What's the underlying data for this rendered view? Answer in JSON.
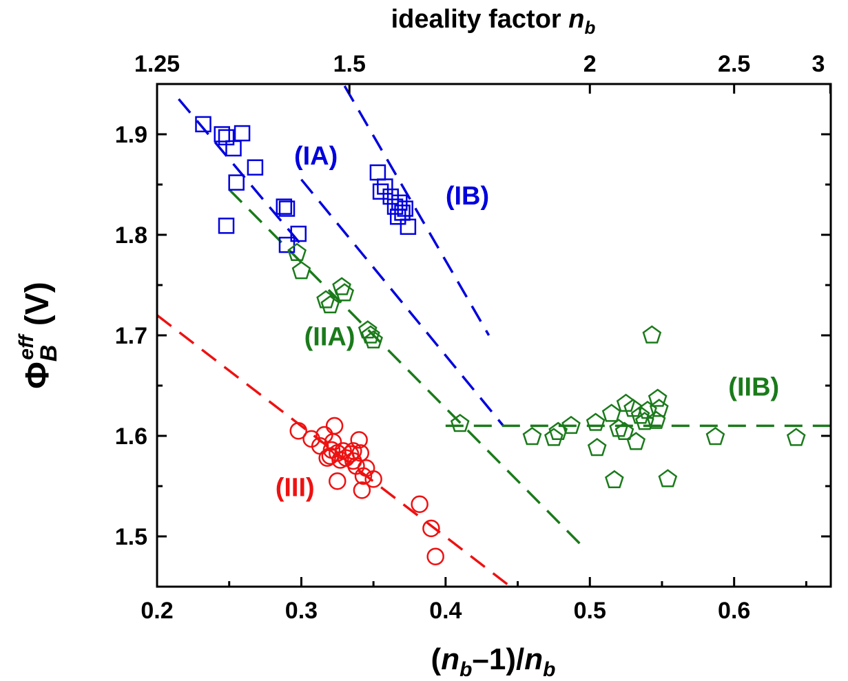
{
  "chart_data": {
    "type": "scatter",
    "title": "",
    "xlabel": {
      "open": "(",
      "var": "n",
      "sub": "b",
      "mid": "–1)/",
      "var2": "n",
      "sub2": "b"
    },
    "ylabel": {
      "sym": "Φ",
      "sub": "B",
      "sup": "eff",
      "unit": " (V)"
    },
    "top_axis": {
      "label_main": "ideality factor ",
      "label_var": "n",
      "label_sub": "b",
      "ticks": [
        {
          "label": "1.25",
          "n": 1.25
        },
        {
          "label": "1.5",
          "n": 1.5
        },
        {
          "label": "2",
          "n": 2.0
        },
        {
          "label": "2.5",
          "n": 2.5
        },
        {
          "label": "3",
          "n": 3.0
        }
      ]
    },
    "xlim": [
      0.2,
      0.667
    ],
    "ylim": [
      1.45,
      1.95
    ],
    "xticks": [
      {
        "v": 0.2,
        "label": "0.2"
      },
      {
        "v": 0.3,
        "label": "0.3"
      },
      {
        "v": 0.4,
        "label": "0.4"
      },
      {
        "v": 0.5,
        "label": "0.5"
      },
      {
        "v": 0.6,
        "label": "0.6"
      }
    ],
    "yticks": [
      {
        "v": 1.5,
        "label": "1.5"
      },
      {
        "v": 1.6,
        "label": "1.6"
      },
      {
        "v": 1.7,
        "label": "1.7"
      },
      {
        "v": 1.8,
        "label": "1.8"
      },
      {
        "v": 1.9,
        "label": "1.9"
      }
    ],
    "grid": false,
    "colors": {
      "blue": "#0000dd",
      "green": "#1a7a1a",
      "red": "#ee1111"
    },
    "series": [
      {
        "marker": "square",
        "color": "blue",
        "points": [
          [
            0.232,
            1.91
          ],
          [
            0.245,
            1.9
          ],
          [
            0.248,
            1.897
          ],
          [
            0.259,
            1.901
          ],
          [
            0.253,
            1.886
          ],
          [
            0.268,
            1.867
          ],
          [
            0.255,
            1.852
          ],
          [
            0.248,
            1.809
          ],
          [
            0.288,
            1.828
          ],
          [
            0.29,
            1.826
          ],
          [
            0.298,
            1.801
          ],
          [
            0.29,
            1.79
          ],
          [
            0.353,
            1.862
          ],
          [
            0.355,
            1.843
          ],
          [
            0.358,
            1.848
          ],
          [
            0.362,
            1.838
          ],
          [
            0.365,
            1.828
          ],
          [
            0.368,
            1.832
          ],
          [
            0.372,
            1.826
          ],
          [
            0.367,
            1.818
          ],
          [
            0.37,
            1.822
          ],
          [
            0.374,
            1.808
          ]
        ]
      },
      {
        "marker": "pentagon",
        "color": "green",
        "points": [
          [
            0.297,
            1.782
          ],
          [
            0.3,
            1.764
          ],
          [
            0.317,
            1.735
          ],
          [
            0.32,
            1.73
          ],
          [
            0.328,
            1.748
          ],
          [
            0.33,
            1.742
          ],
          [
            0.346,
            1.705
          ],
          [
            0.348,
            1.7
          ],
          [
            0.35,
            1.695
          ],
          [
            0.41,
            1.612
          ],
          [
            0.46,
            1.599
          ],
          [
            0.475,
            1.598
          ],
          [
            0.478,
            1.604
          ],
          [
            0.487,
            1.61
          ],
          [
            0.504,
            1.613
          ],
          [
            0.505,
            1.588
          ],
          [
            0.515,
            1.622
          ],
          [
            0.517,
            1.556
          ],
          [
            0.52,
            1.607
          ],
          [
            0.524,
            1.604
          ],
          [
            0.525,
            1.632
          ],
          [
            0.53,
            1.627
          ],
          [
            0.532,
            1.594
          ],
          [
            0.535,
            1.62
          ],
          [
            0.538,
            1.614
          ],
          [
            0.54,
            1.625
          ],
          [
            0.543,
            1.7
          ],
          [
            0.546,
            1.615
          ],
          [
            0.547,
            1.637
          ],
          [
            0.548,
            1.627
          ],
          [
            0.554,
            1.557
          ],
          [
            0.587,
            1.599
          ],
          [
            0.643,
            1.598
          ]
        ]
      },
      {
        "marker": "circle",
        "color": "red",
        "points": [
          [
            0.298,
            1.605
          ],
          [
            0.307,
            1.597
          ],
          [
            0.313,
            1.59
          ],
          [
            0.316,
            1.601
          ],
          [
            0.318,
            1.578
          ],
          [
            0.321,
            1.586
          ],
          [
            0.323,
            1.61
          ],
          [
            0.325,
            1.583
          ],
          [
            0.327,
            1.576
          ],
          [
            0.329,
            1.585
          ],
          [
            0.331,
            1.578
          ],
          [
            0.325,
            1.555
          ],
          [
            0.334,
            1.582
          ],
          [
            0.336,
            1.575
          ],
          [
            0.338,
            1.57
          ],
          [
            0.34,
            1.596
          ],
          [
            0.341,
            1.583
          ],
          [
            0.343,
            1.56
          ],
          [
            0.345,
            1.568
          ],
          [
            0.342,
            1.546
          ],
          [
            0.35,
            1.557
          ],
          [
            0.322,
            1.594
          ],
          [
            0.32,
            1.58
          ],
          [
            0.336,
            1.585
          ],
          [
            0.382,
            1.532
          ],
          [
            0.39,
            1.508
          ],
          [
            0.393,
            1.48
          ]
        ]
      }
    ],
    "lines": [
      {
        "color": "blue",
        "from": [
          0.215,
          1.935
        ],
        "to": [
          0.3,
          1.79
        ]
      },
      {
        "color": "blue",
        "from": [
          0.3,
          1.855
        ],
        "to": [
          0.44,
          1.61
        ]
      },
      {
        "color": "blue",
        "from": [
          0.33,
          1.948
        ],
        "to": [
          0.43,
          1.7
        ]
      },
      {
        "color": "green",
        "from": [
          0.25,
          1.845
        ],
        "to": [
          0.495,
          1.49
        ]
      },
      {
        "color": "green",
        "from": [
          0.4,
          1.61
        ],
        "to": [
          0.667,
          1.61
        ]
      },
      {
        "color": "red",
        "from": [
          0.2,
          1.72
        ],
        "to": [
          0.445,
          1.45
        ]
      }
    ],
    "annotations": [
      {
        "text": "(IA)",
        "color": "blue",
        "x": 0.295,
        "y": 1.87
      },
      {
        "text": "(IB)",
        "color": "blue",
        "x": 0.4,
        "y": 1.83
      },
      {
        "text": "(IIA)",
        "color": "green",
        "x": 0.302,
        "y": 1.69
      },
      {
        "text": "(IIB)",
        "color": "green",
        "x": 0.596,
        "y": 1.64
      },
      {
        "text": "(III)",
        "color": "red",
        "x": 0.282,
        "y": 1.54
      }
    ]
  }
}
